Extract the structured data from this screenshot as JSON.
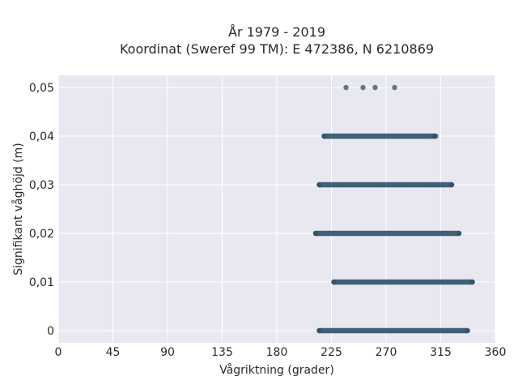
{
  "chart_data": {
    "type": "scatter",
    "title_line1": "År 1979 - 2019",
    "title_line2": "Koordinat (Sweref 99 TM): E 472386, N 6210869",
    "xlabel": "Vågriktning (grader)",
    "ylabel": "Signifikant våghöjd (m)",
    "xlim": [
      0,
      360
    ],
    "ylim": [
      -0.0025,
      0.0525
    ],
    "x_ticks": [
      0,
      45,
      90,
      135,
      180,
      225,
      270,
      315,
      360
    ],
    "x_tick_labels": [
      "0",
      "45",
      "90",
      "135",
      "180",
      "225",
      "270",
      "315",
      "360"
    ],
    "y_ticks": [
      0,
      0.01,
      0.02,
      0.03,
      0.04,
      0.05
    ],
    "y_tick_labels": [
      "0",
      "0,01",
      "0,02",
      "0,03",
      "0,04",
      "0,05"
    ],
    "grid": true,
    "point_color": "#2f5068",
    "plot_background": "#e8e8f0",
    "series": [
      {
        "bands": [
          {
            "y": 0.0,
            "x_min": 215,
            "x_max": 337
          },
          {
            "y": 0.01,
            "x_min": 227,
            "x_max": 341
          },
          {
            "y": 0.02,
            "x_min": 212,
            "x_max": 330
          },
          {
            "y": 0.03,
            "x_min": 215,
            "x_max": 324
          },
          {
            "y": 0.04,
            "x_min": 219,
            "x_max": 310
          }
        ],
        "points": [
          {
            "x": 311,
            "y": 0.04
          },
          {
            "x": 237,
            "y": 0.05
          },
          {
            "x": 251,
            "y": 0.05
          },
          {
            "x": 261,
            "y": 0.05
          },
          {
            "x": 277,
            "y": 0.05
          }
        ]
      }
    ]
  }
}
